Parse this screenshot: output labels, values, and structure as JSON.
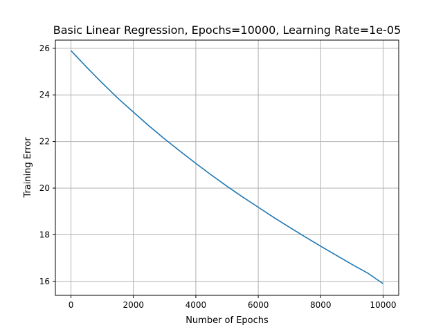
{
  "chart_data": {
    "type": "line",
    "title": "Basic Linear Regression, Epochs=10000, Learning Rate=1e-05",
    "xlabel": "Number of Epochs",
    "ylabel": "Training Error",
    "xlim": [
      -500,
      10500
    ],
    "ylim": [
      15.4,
      26.35
    ],
    "xticks": [
      0,
      2000,
      4000,
      6000,
      8000,
      10000
    ],
    "yticks": [
      16,
      18,
      20,
      22,
      24,
      26
    ],
    "grid": true,
    "legend": "none",
    "series": [
      {
        "color": "#1f77b4",
        "x": [
          0,
          500,
          1000,
          1500,
          2000,
          2500,
          3000,
          3500,
          4000,
          4500,
          5000,
          5500,
          6000,
          6500,
          7000,
          7500,
          8000,
          8500,
          9000,
          9500,
          10000
        ],
        "values": [
          25.9,
          25.19,
          24.51,
          23.86,
          23.26,
          22.67,
          22.11,
          21.58,
          21.06,
          20.56,
          20.08,
          19.62,
          19.18,
          18.74,
          18.32,
          17.91,
          17.51,
          17.12,
          16.73,
          16.36,
          15.9
        ]
      }
    ]
  }
}
